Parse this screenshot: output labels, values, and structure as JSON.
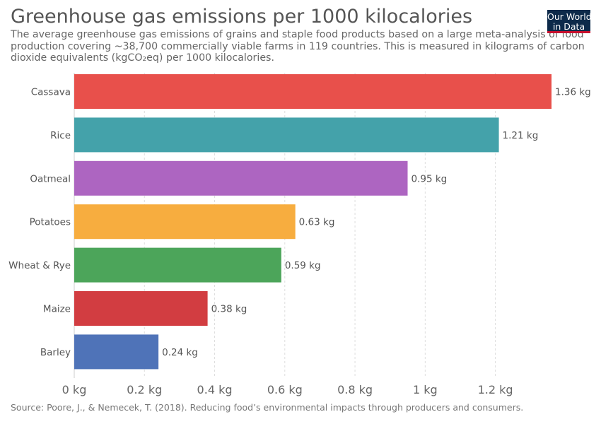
{
  "title": "Greenhouse gas emissions per 1000 kilocalories",
  "subtitle_lines": [
    "The average greenhouse gas emissions of grains and staple food products based on a large meta-analysis of food",
    "production covering ~38,700 commercially viable farms in 119 countries. This is measured in kilograms of carbon",
    "dioxide equivalents (kgCO₂eq) per 1000 kilocalories."
  ],
  "logo": {
    "line1": "Our World",
    "line2": "in Data"
  },
  "source": "Source: Poore, J., & Nemecek, T. (2018). Reducing food’s environmental impacts through producers and consumers.",
  "chart_data": {
    "type": "bar",
    "orientation": "horizontal",
    "title": "Greenhouse gas emissions per 1000 kilocalories",
    "xlabel": "",
    "ylabel": "",
    "xlim": [
      0,
      1.36
    ],
    "unit_suffix": " kg",
    "categories": [
      "Cassava",
      "Rice",
      "Oatmeal",
      "Potatoes",
      "Wheat & Rye",
      "Maize",
      "Barley"
    ],
    "values": [
      1.36,
      1.21,
      0.95,
      0.63,
      0.59,
      0.38,
      0.24
    ],
    "colors": [
      "#e8504b",
      "#44a2aa",
      "#ad65c1",
      "#f7ad3f",
      "#4ca55a",
      "#d23d41",
      "#4f73b8"
    ],
    "ticks": [
      0,
      0.2,
      0.4,
      0.6,
      0.8,
      1,
      1.2
    ],
    "tick_labels": [
      "0 kg",
      "0.2 kg",
      "0.4 kg",
      "0.6 kg",
      "0.8 kg",
      "1 kg",
      "1.2 kg"
    ],
    "grid": true
  }
}
